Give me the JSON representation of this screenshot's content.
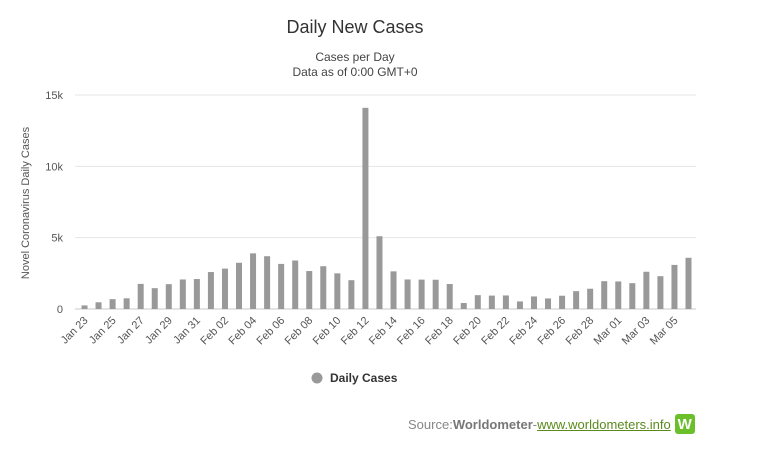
{
  "chart_data": {
    "type": "bar",
    "title": "Daily New Cases",
    "subtitle_lines": [
      "Cases per Day",
      "Data as of 0:00 GMT+0"
    ],
    "ylabel": "Novel Coronavirus Daily Cases",
    "ylim": [
      0,
      15000
    ],
    "yticks": [
      {
        "value": 0,
        "label": "0"
      },
      {
        "value": 5000,
        "label": "5k"
      },
      {
        "value": 10000,
        "label": "10k"
      },
      {
        "value": 15000,
        "label": "15k"
      }
    ],
    "grid": true,
    "legend_position": "bottom-center",
    "bar_color": "#999999",
    "series": [
      {
        "name": "Daily Cases"
      }
    ],
    "categories": [
      "Jan 23",
      "Jan 24",
      "Jan 25",
      "Jan 26",
      "Jan 27",
      "Jan 28",
      "Jan 29",
      "Jan 30",
      "Jan 31",
      "Feb 01",
      "Feb 02",
      "Feb 03",
      "Feb 04",
      "Feb 05",
      "Feb 06",
      "Feb 07",
      "Feb 08",
      "Feb 09",
      "Feb 10",
      "Feb 11",
      "Feb 12",
      "Feb 13",
      "Feb 14",
      "Feb 15",
      "Feb 16",
      "Feb 17",
      "Feb 18",
      "Feb 19",
      "Feb 20",
      "Feb 21",
      "Feb 22",
      "Feb 23",
      "Feb 24",
      "Feb 25",
      "Feb 26",
      "Feb 27",
      "Feb 28",
      "Feb 29",
      "Mar 01",
      "Mar 02",
      "Mar 03",
      "Mar 04",
      "Mar 05",
      "Mar 06"
    ],
    "x_tick_labels": [
      "Jan 23",
      "Jan 25",
      "Jan 27",
      "Jan 29",
      "Jan 31",
      "Feb 02",
      "Feb 04",
      "Feb 06",
      "Feb 08",
      "Feb 10",
      "Feb 12",
      "Feb 14",
      "Feb 16",
      "Feb 18",
      "Feb 20",
      "Feb 22",
      "Feb 24",
      "Feb 26",
      "Feb 28",
      "Mar 01",
      "Mar 03",
      "Mar 05"
    ],
    "values": [
      250,
      470,
      690,
      750,
      1760,
      1460,
      1740,
      2070,
      2100,
      2590,
      2830,
      3240,
      3900,
      3700,
      3160,
      3400,
      2660,
      3000,
      2500,
      2020,
      14100,
      5100,
      2640,
      2070,
      2060,
      2050,
      1750,
      420,
      970,
      940,
      950,
      530,
      880,
      740,
      930,
      1250,
      1420,
      1950,
      1930,
      1810,
      2610,
      2300,
      3090,
      3590
    ]
  },
  "legend": {
    "label": "Daily Cases"
  },
  "source": {
    "prefix": "Source: ",
    "brand": "Worldometer",
    "separator": " - ",
    "link": "www.worldometers.info",
    "logo_letter": "W"
  }
}
